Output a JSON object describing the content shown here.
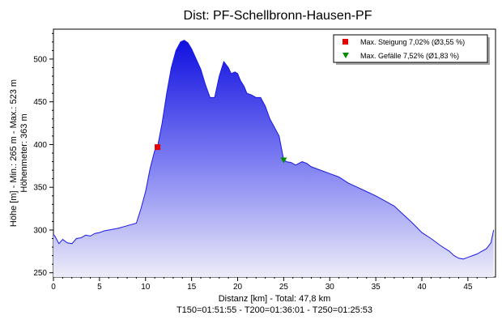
{
  "chart_data": {
    "type": "area",
    "title": "Dist: PF-Schellbronn-Hausen-PF",
    "xlabel": "Distanz [km] - Total: 47,8 km",
    "xlabel2": "T150=01:51:55 - T200=01:36:01 - T250=01:25:53",
    "ylabel": "Höhe [m] - Min.: 265 m - Max.: 523 m",
    "ylabel2": "Höhenmeter: 363 m",
    "xlim": [
      0,
      48
    ],
    "ylim": [
      245,
      535
    ],
    "xticks": [
      "0",
      "5",
      "10",
      "15",
      "20",
      "25",
      "30",
      "35",
      "40",
      "45"
    ],
    "yticks": [
      "250",
      "300",
      "350",
      "400",
      "450",
      "500"
    ],
    "grid": false,
    "legend_position": "top-right",
    "fill_color": "#1a1ae6",
    "line_color": "#1a1ae6",
    "series": [
      {
        "x": [
          0,
          0.2,
          0.6,
          1.0,
          1.5,
          2.0,
          2.5,
          3.0,
          3.5,
          4.0,
          4.5,
          5.0,
          5.5,
          6.0,
          7.0,
          8.0,
          9.0,
          9.5,
          10.0,
          10.5,
          11.0,
          11.3,
          11.8,
          12.3,
          12.8,
          13.3,
          13.8,
          14.2,
          14.6,
          15.0,
          15.5,
          16.0,
          16.5,
          17.0,
          17.5,
          18.0,
          18.5,
          19.0,
          19.3,
          19.7,
          20.0,
          20.3,
          20.7,
          21.0,
          21.5,
          22.0,
          22.5,
          23.0,
          23.5,
          24.0,
          24.5,
          25.0,
          25.3,
          25.8,
          26.3,
          27.0,
          27.5,
          28.0,
          29.0,
          30.0,
          31.0,
          32.0,
          33.0,
          34.0,
          35.0,
          36.0,
          37.0,
          38.0,
          39.0,
          40.0,
          41.0,
          42.0,
          43.0,
          43.5,
          44.0,
          44.5,
          45.0,
          45.5,
          46.0,
          46.5,
          47.0,
          47.5,
          47.8
        ],
        "y": [
          295,
          292,
          284,
          289,
          285,
          284,
          290,
          291,
          294,
          293,
          296,
          297,
          299,
          300,
          302,
          305,
          308,
          325,
          345,
          372,
          393,
          397,
          425,
          460,
          490,
          510,
          520,
          522,
          519,
          512,
          500,
          488,
          470,
          455,
          455,
          480,
          497,
          490,
          483,
          485,
          483,
          475,
          468,
          460,
          458,
          455,
          455,
          445,
          430,
          420,
          410,
          382,
          380,
          379,
          376,
          380,
          378,
          374,
          370,
          366,
          362,
          355,
          350,
          345,
          340,
          334,
          328,
          318,
          308,
          297,
          290,
          282,
          275,
          270,
          267,
          266,
          268,
          270,
          272,
          275,
          278,
          285,
          300
        ]
      }
    ],
    "markers": [
      {
        "label": "Max. Steigung 7,02% (Ø3,55 %)",
        "x": 11.3,
        "y": 397,
        "shape": "square",
        "color": "#e60000"
      },
      {
        "label": "Max. Gefälle 7,52% (Ø1,83 %)",
        "x": 25.0,
        "y": 382,
        "shape": "triangle-down",
        "color": "#008c00"
      }
    ]
  }
}
